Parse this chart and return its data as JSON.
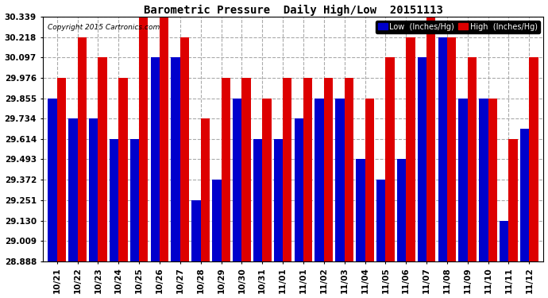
{
  "title": "Barometric Pressure  Daily High/Low  20151113",
  "copyright": "Copyright 2015 Cartronics.com",
  "legend_low": "Low  (Inches/Hg)",
  "legend_high": "High  (Inches/Hg)",
  "low_color": "#0000cc",
  "high_color": "#dd0000",
  "ylim_min": 28.888,
  "ylim_max": 30.339,
  "yticks": [
    28.888,
    29.009,
    29.13,
    29.251,
    29.372,
    29.493,
    29.614,
    29.734,
    29.855,
    29.976,
    30.097,
    30.218,
    30.339
  ],
  "bg_color": "#ffffff",
  "grid_color": "#aaaaaa",
  "dates": [
    "10/21",
    "10/22",
    "10/23",
    "10/24",
    "10/25",
    "10/26",
    "10/27",
    "10/28",
    "10/29",
    "10/30",
    "10/31",
    "11/01",
    "11/01",
    "11/02",
    "11/03",
    "11/04",
    "11/05",
    "11/06",
    "11/07",
    "11/08",
    "11/09",
    "11/10",
    "11/11",
    "11/12"
  ],
  "low_values": [
    29.855,
    29.734,
    29.734,
    29.614,
    29.614,
    30.097,
    30.097,
    29.251,
    29.372,
    29.855,
    29.614,
    29.614,
    29.734,
    29.855,
    29.855,
    29.493,
    29.372,
    29.493,
    30.097,
    30.218,
    29.855,
    29.855,
    29.13,
    29.672
  ],
  "high_values": [
    29.976,
    30.218,
    30.097,
    29.976,
    30.339,
    30.339,
    30.218,
    29.734,
    29.976,
    29.976,
    29.855,
    29.976,
    29.976,
    29.976,
    29.976,
    29.855,
    30.097,
    30.218,
    30.339,
    30.218,
    30.097,
    29.855,
    29.614,
    30.097
  ]
}
